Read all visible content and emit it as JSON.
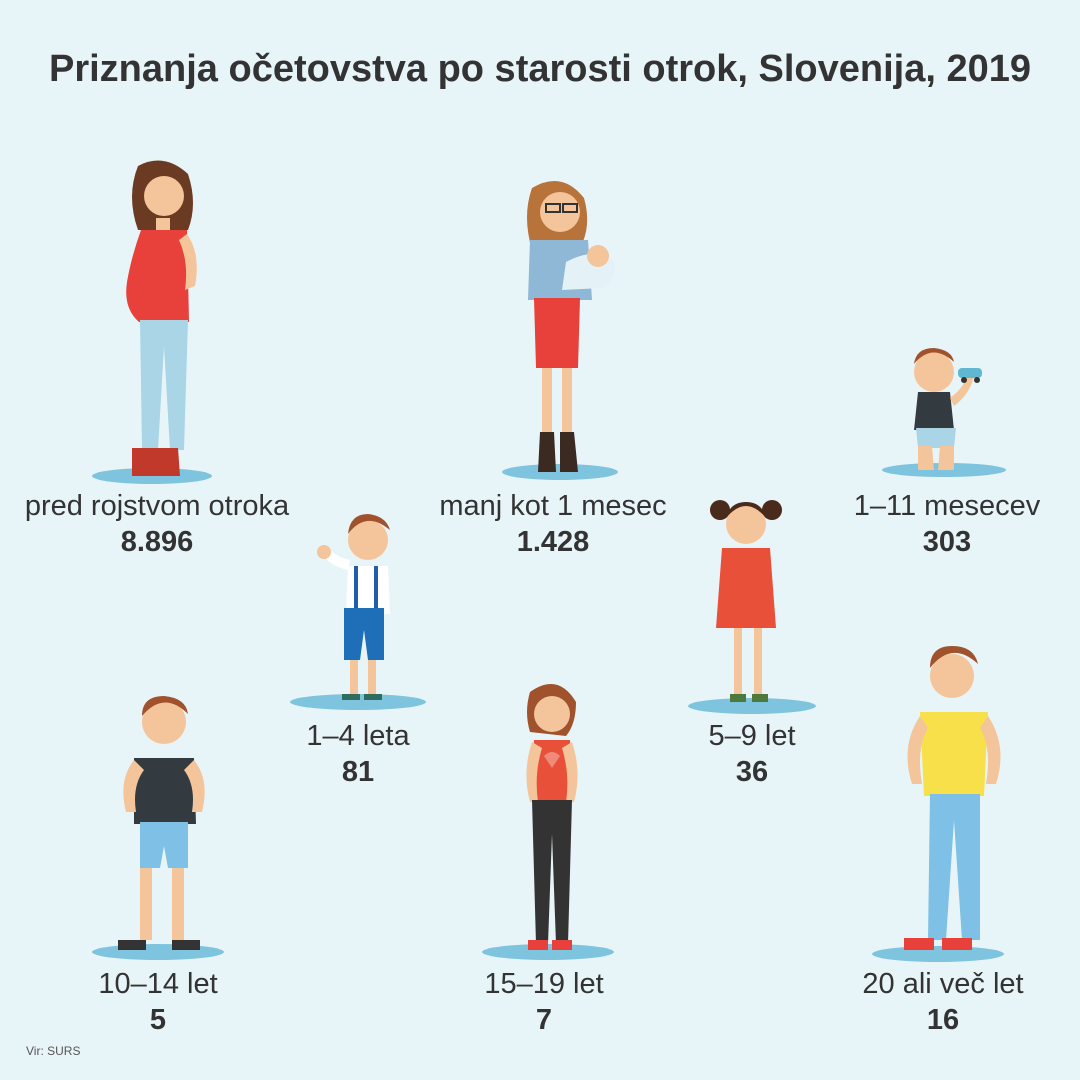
{
  "title": "Priznanja očetovstva po starosti otrok, Slovenija, 2019",
  "source": "Vir: SURS",
  "colors": {
    "background": "#e8f5f8",
    "shadow": "#7ec4de",
    "text": "#333333"
  },
  "categories": [
    {
      "label": "pred rojstvom otroka",
      "value": "8.896",
      "figure": "pregnant-woman-icon"
    },
    {
      "label": "manj kot 1 mesec",
      "value": "1.428",
      "figure": "mother-holding-newborn-icon"
    },
    {
      "label": "1–11 mesecev",
      "value": "303",
      "figure": "baby-with-toy-car-icon"
    },
    {
      "label": "1–4 leta",
      "value": "81",
      "figure": "waving-toddler-icon"
    },
    {
      "label": "5–9 let",
      "value": "36",
      "figure": "girl-with-pigtails-icon"
    },
    {
      "label": "10–14 let",
      "value": "5",
      "figure": "boy-grey-shirt-icon"
    },
    {
      "label": "15–19 let",
      "value": "7",
      "figure": "teen-girl-icon"
    },
    {
      "label": "20 ali več let",
      "value": "16",
      "figure": "young-man-yellow-shirt-icon"
    }
  ]
}
